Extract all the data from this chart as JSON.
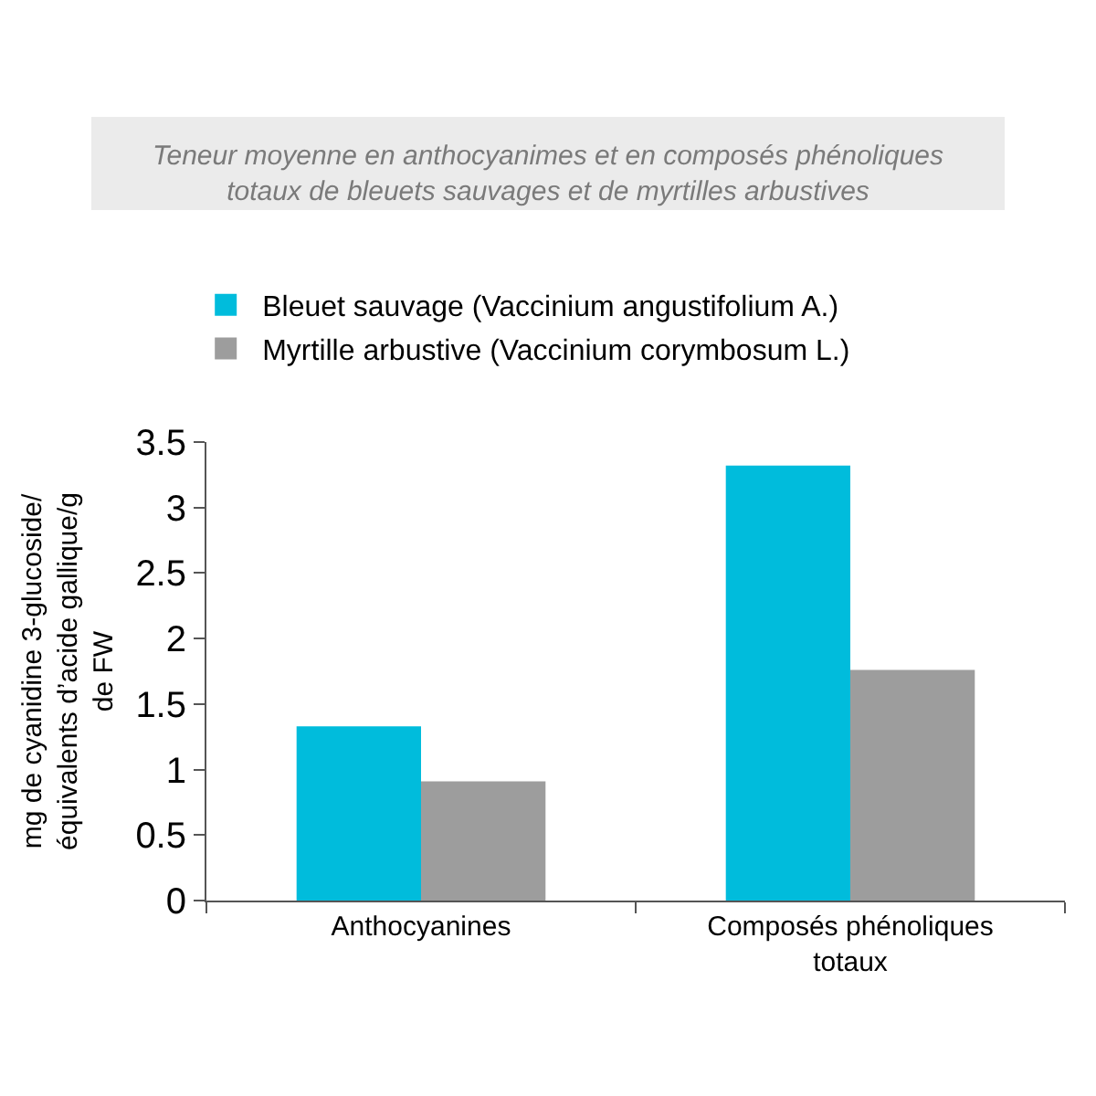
{
  "chart_data": {
    "type": "bar",
    "title": "Teneur moyenne en anthocyanimes et en composés phénoliques totaux de bleuets sauvages et de myrtilles arbustives",
    "ylabel": "mg de cyanidine 3-glucoside/ équivalents d’acide gallique/g de FW",
    "categories": [
      "Anthocyanines",
      "Composés phénoliques totaux"
    ],
    "series": [
      {
        "name": "Bleuet sauvage (Vaccinium angustifolium A.)",
        "color": "#00bcdc",
        "values": [
          1.33,
          3.32
        ]
      },
      {
        "name": "Myrtille arbustive (Vaccinium corymbosum L.)",
        "color": "#9d9d9d",
        "values": [
          0.91,
          1.76
        ]
      }
    ],
    "ylim": [
      0,
      3.5
    ],
    "yticks": [
      0,
      0.5,
      1,
      1.5,
      2,
      2.5,
      3,
      3.5
    ],
    "grid": false,
    "legend": "top left"
  }
}
